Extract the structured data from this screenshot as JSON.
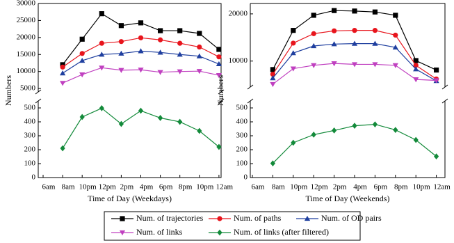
{
  "chart_data": [
    {
      "type": "line",
      "y_label": "Numbers",
      "x_label": "Time of Day (Weekdays)",
      "categories": [
        "6am",
        "8am",
        "10pm",
        "12pm",
        "2pm",
        "4pm",
        "6pm",
        "8pm",
        "10pm",
        "12am"
      ],
      "ylim": [
        0,
        550
      ],
      "yticks": [
        0,
        100,
        200,
        300,
        400,
        500
      ],
      "ylim_upper": [
        4000,
        30000
      ],
      "yticks_upper": [
        5000,
        10000,
        15000,
        20000,
        25000,
        30000
      ],
      "series": [
        {
          "name": "Num. of trajectories",
          "color": "#000000",
          "marker": "square",
          "values": [
            null,
            12000,
            19500,
            27000,
            23500,
            24300,
            22000,
            22000,
            21200,
            16500
          ]
        },
        {
          "name": "Num. of paths",
          "color": "#e8141c",
          "marker": "circle",
          "values": [
            null,
            11300,
            15300,
            18300,
            18800,
            19900,
            19300,
            18300,
            17200,
            14300
          ]
        },
        {
          "name": "Num. of OD pairs",
          "color": "#1f3f9f",
          "marker": "triangle-up",
          "values": [
            null,
            9500,
            13200,
            15000,
            15300,
            16000,
            15600,
            15000,
            14500,
            12200
          ]
        },
        {
          "name": "Num. of links",
          "color": "#c040c0",
          "marker": "triangle-down",
          "values": [
            null,
            6600,
            9100,
            11100,
            10400,
            10500,
            9800,
            10000,
            10100,
            8900
          ]
        },
        {
          "name": "Num. of links (after filtered)",
          "color": "#138a3a",
          "marker": "diamond",
          "values": [
            null,
            210,
            435,
            498,
            385,
            480,
            428,
            400,
            335,
            220
          ]
        }
      ]
    },
    {
      "type": "line",
      "y_label": "Numbers",
      "x_label": "Time of Day (Weekends)",
      "categories": [
        "6am",
        "8am",
        "10pm",
        "12pm",
        "2pm",
        "4pm",
        "6pm",
        "8pm",
        "10pm",
        "12am"
      ],
      "ylim": [
        0,
        550
      ],
      "yticks": [
        0,
        100,
        200,
        300,
        400,
        500
      ],
      "ylim_upper": [
        4500,
        22200
      ],
      "yticks_upper": [
        10000,
        20000
      ],
      "series": [
        {
          "color": "#000000",
          "marker": "square",
          "values": [
            null,
            8200,
            16500,
            19700,
            20700,
            20600,
            20400,
            19700,
            10100,
            8100
          ]
        },
        {
          "color": "#e8141c",
          "marker": "circle",
          "values": [
            null,
            7200,
            13800,
            15800,
            16400,
            16500,
            16500,
            15500,
            9100,
            6200
          ]
        },
        {
          "color": "#1f3f9f",
          "marker": "triangle-up",
          "values": [
            null,
            6400,
            11700,
            13200,
            13600,
            13700,
            13700,
            12900,
            8300,
            5800
          ]
        },
        {
          "color": "#c040c0",
          "marker": "triangle-down",
          "values": [
            null,
            5100,
            8400,
            9100,
            9500,
            9300,
            9300,
            9100,
            6100,
            5900
          ]
        },
        {
          "color": "#138a3a",
          "marker": "diamond",
          "values": [
            null,
            102,
            250,
            308,
            338,
            372,
            382,
            342,
            270,
            152
          ]
        }
      ]
    }
  ]
}
